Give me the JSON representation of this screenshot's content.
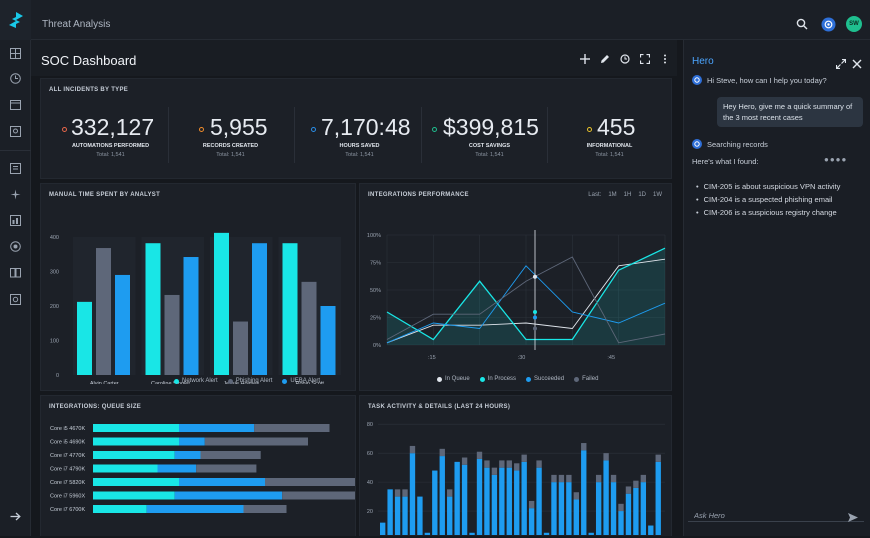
{
  "topbar": {
    "title": "Threat Analysis",
    "avatar_initials": "SW"
  },
  "nav": {
    "items": [
      "grid-icon",
      "clock-icon",
      "calendar-icon",
      "inbox-icon",
      "report-icon",
      "sparkle-icon",
      "chart-icon",
      "target-icon",
      "book-icon",
      "settings-icon"
    ],
    "collapse_icon": "arrow-right-icon"
  },
  "dashboard": {
    "title": "SOC Dashboard"
  },
  "incidents": {
    "title": "ALL INCIDENTS BY TYPE",
    "kpis": [
      {
        "value": "332,127",
        "label": "AUTOMATIONS PERFORMED",
        "sub": "Total: 1,541",
        "color": "#e8664a"
      },
      {
        "value": "5,955",
        "label": "RECORDS CREATED",
        "sub": "Total: 1,541",
        "color": "#f08c2a"
      },
      {
        "value": "7,170:48",
        "label": "HOURS SAVED",
        "sub": "Total: 1,541",
        "color": "#2a8ee8"
      },
      {
        "value": "$399,815",
        "label": "COST SAVINGS",
        "sub": "Total: 1,541",
        "color": "#1fbf8f"
      },
      {
        "value": "455",
        "label": "INFORMATIONAL",
        "sub": "Total: 1,541",
        "color": "#e8c22a"
      }
    ]
  },
  "manual_time": {
    "title": "MANUAL TIME SPENT BY ANALYST",
    "legend": [
      "Network Alert",
      "Phishing Alert",
      "UEBA Alert"
    ]
  },
  "integrations": {
    "title": "INTEGRATIONS PERFORMANCE",
    "range": [
      "Last:",
      "1M",
      "1H",
      "1D",
      "1W"
    ],
    "legend": [
      "In Queue",
      "In Process",
      "Succeeded",
      "Failed"
    ]
  },
  "queue": {
    "title": "INTEGRATIONS: QUEUE SIZE"
  },
  "tasks": {
    "title": "TASK ACTIVITY & DETAILS (LAST 24 HOURS)"
  },
  "hero": {
    "title": "Hero",
    "greeting": "Hi Steve, how can I help you today?",
    "user_msg": "Hey Hero, give me a quick summary of the 3 most recent cases",
    "searching": "Searching records",
    "found": "Here's what I found:",
    "typing": "●●●●",
    "bullets": [
      "CIM-205 is about suspicious VPN activity",
      "CIM-204 is a suspected phishing email",
      "CIM-206 is a suspicious registry change"
    ],
    "ask_placeholder": "Ask Hero"
  },
  "colors": {
    "network": "#19e6e6",
    "phishing": "#5e6779",
    "ueba": "#1e9cf0",
    "failed": "#5e6779",
    "succeeded": "#b8c0cc",
    "inprocess": "#19e6e6",
    "inqueue": "#e0e5ec"
  },
  "chart_data": [
    {
      "type": "bar",
      "title": "MANUAL TIME SPENT BY ANALYST",
      "categories": [
        "Alvin Carter",
        "Caroline Singlet...",
        "Jessie Holmes",
        "Robin Scott"
      ],
      "series": [
        {
          "name": "Network Alert",
          "values": [
            212,
            382,
            412,
            382
          ]
        },
        {
          "name": "Phishing Alert",
          "values": [
            368,
            232,
            155,
            270
          ]
        },
        {
          "name": "UEBA Alert",
          "values": [
            290,
            342,
            382,
            200
          ]
        }
      ],
      "ylim": [
        0,
        400
      ],
      "yticks": [
        0,
        100,
        200,
        300,
        400
      ],
      "legend": "bottom"
    },
    {
      "type": "line",
      "title": "INTEGRATIONS PERFORMANCE",
      "x": [
        0,
        1,
        2,
        3,
        4,
        5,
        6
      ],
      "xticks": [
        ":15",
        ":30",
        ":45"
      ],
      "yticks": [
        "0%",
        "25%",
        "50%",
        "75%",
        "100%"
      ],
      "ylim": [
        0,
        100
      ],
      "series": [
        {
          "name": "In Queue",
          "values": [
            2,
            18,
            18,
            20,
            15,
            72,
            78
          ]
        },
        {
          "name": "In Process",
          "values": [
            30,
            5,
            58,
            5,
            5,
            68,
            88
          ]
        },
        {
          "name": "Succeeded",
          "values": [
            2,
            20,
            15,
            72,
            30,
            20,
            38
          ]
        },
        {
          "name": "Failed",
          "values": [
            5,
            28,
            28,
            58,
            80,
            2,
            10
          ]
        }
      ],
      "legend": "bottom"
    },
    {
      "type": "bar",
      "title": "INTEGRATIONS: QUEUE SIZE",
      "orientation": "horizontal",
      "categories": [
        "Core i5 4670K",
        "Core i5 4690K",
        "Core i7 4770K",
        "Core i7 4790K",
        "Core i7 5820K",
        "Core i7 5960X",
        "Core i7 6700K"
      ],
      "series": [
        {
          "name": "Segment A",
          "values": [
            40,
            40,
            38,
            30,
            40,
            38,
            25
          ]
        },
        {
          "name": "Segment B",
          "values": [
            35,
            12,
            12,
            18,
            40,
            50,
            45
          ]
        },
        {
          "name": "Segment C",
          "values": [
            35,
            48,
            28,
            28,
            45,
            40,
            20
          ]
        }
      ]
    },
    {
      "type": "bar",
      "title": "TASK ACTIVITY & DETAILS (LAST 24 HOURS)",
      "yticks": [
        20,
        40,
        60,
        80
      ],
      "ylim": [
        0,
        85
      ],
      "series": [
        {
          "name": "Blue",
          "values": [
            12,
            35,
            30,
            30,
            60,
            30,
            5,
            48,
            58,
            30,
            54,
            52,
            5,
            56,
            50,
            45,
            50,
            50,
            48,
            54,
            22,
            50,
            5,
            40,
            40,
            40,
            28,
            62,
            5,
            40,
            55,
            40,
            20,
            32,
            36,
            40,
            10,
            54
          ]
        },
        {
          "name": "Gray",
          "values": [
            0,
            0,
            5,
            5,
            5,
            0,
            0,
            0,
            5,
            5,
            0,
            5,
            0,
            5,
            5,
            5,
            5,
            5,
            5,
            5,
            5,
            5,
            0,
            5,
            5,
            5,
            5,
            5,
            0,
            5,
            5,
            5,
            5,
            5,
            5,
            5,
            0,
            5
          ]
        }
      ]
    }
  ]
}
